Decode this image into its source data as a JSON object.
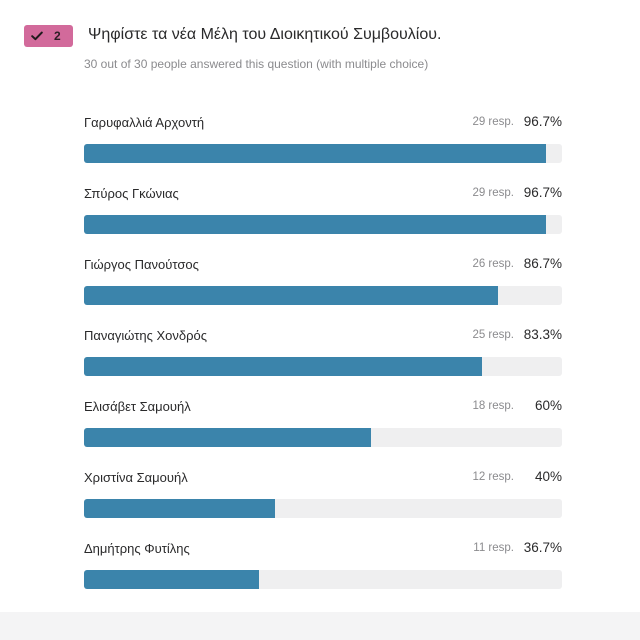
{
  "question": {
    "number": "2",
    "badge_icon": "checkmark-icon",
    "badge_color": "#d26a9b",
    "title": "Ψηφίστε τα νέα Μέλη του Διοικητικού Συμβουλίου.",
    "subtitle": "30 out of 30 people answered this question (with multiple choice)"
  },
  "bar_color": "#3b84ab",
  "track_color": "#efeff0",
  "options": [
    {
      "label": "Γαρυφαλλιά Αρχοντή",
      "responses": "29 resp.",
      "percent": "96.7%",
      "value": 96.7
    },
    {
      "label": "Σπύρος Γκώνιας",
      "responses": "29 resp.",
      "percent": "96.7%",
      "value": 96.7
    },
    {
      "label": "Γιώργος Πανούτσος",
      "responses": "26 resp.",
      "percent": "86.7%",
      "value": 86.7
    },
    {
      "label": "Παναγιώτης Χονδρός",
      "responses": "25 resp.",
      "percent": "83.3%",
      "value": 83.3
    },
    {
      "label": "Ελισάβετ Σαμουήλ",
      "responses": "18 resp.",
      "percent": "60%",
      "value": 60
    },
    {
      "label": "Χριστίνα Σαμουήλ",
      "responses": "12 resp.",
      "percent": "40%",
      "value": 40
    },
    {
      "label": "Δημήτρης Φυτίλης",
      "responses": "11 resp.",
      "percent": "36.7%",
      "value": 36.7
    }
  ]
}
